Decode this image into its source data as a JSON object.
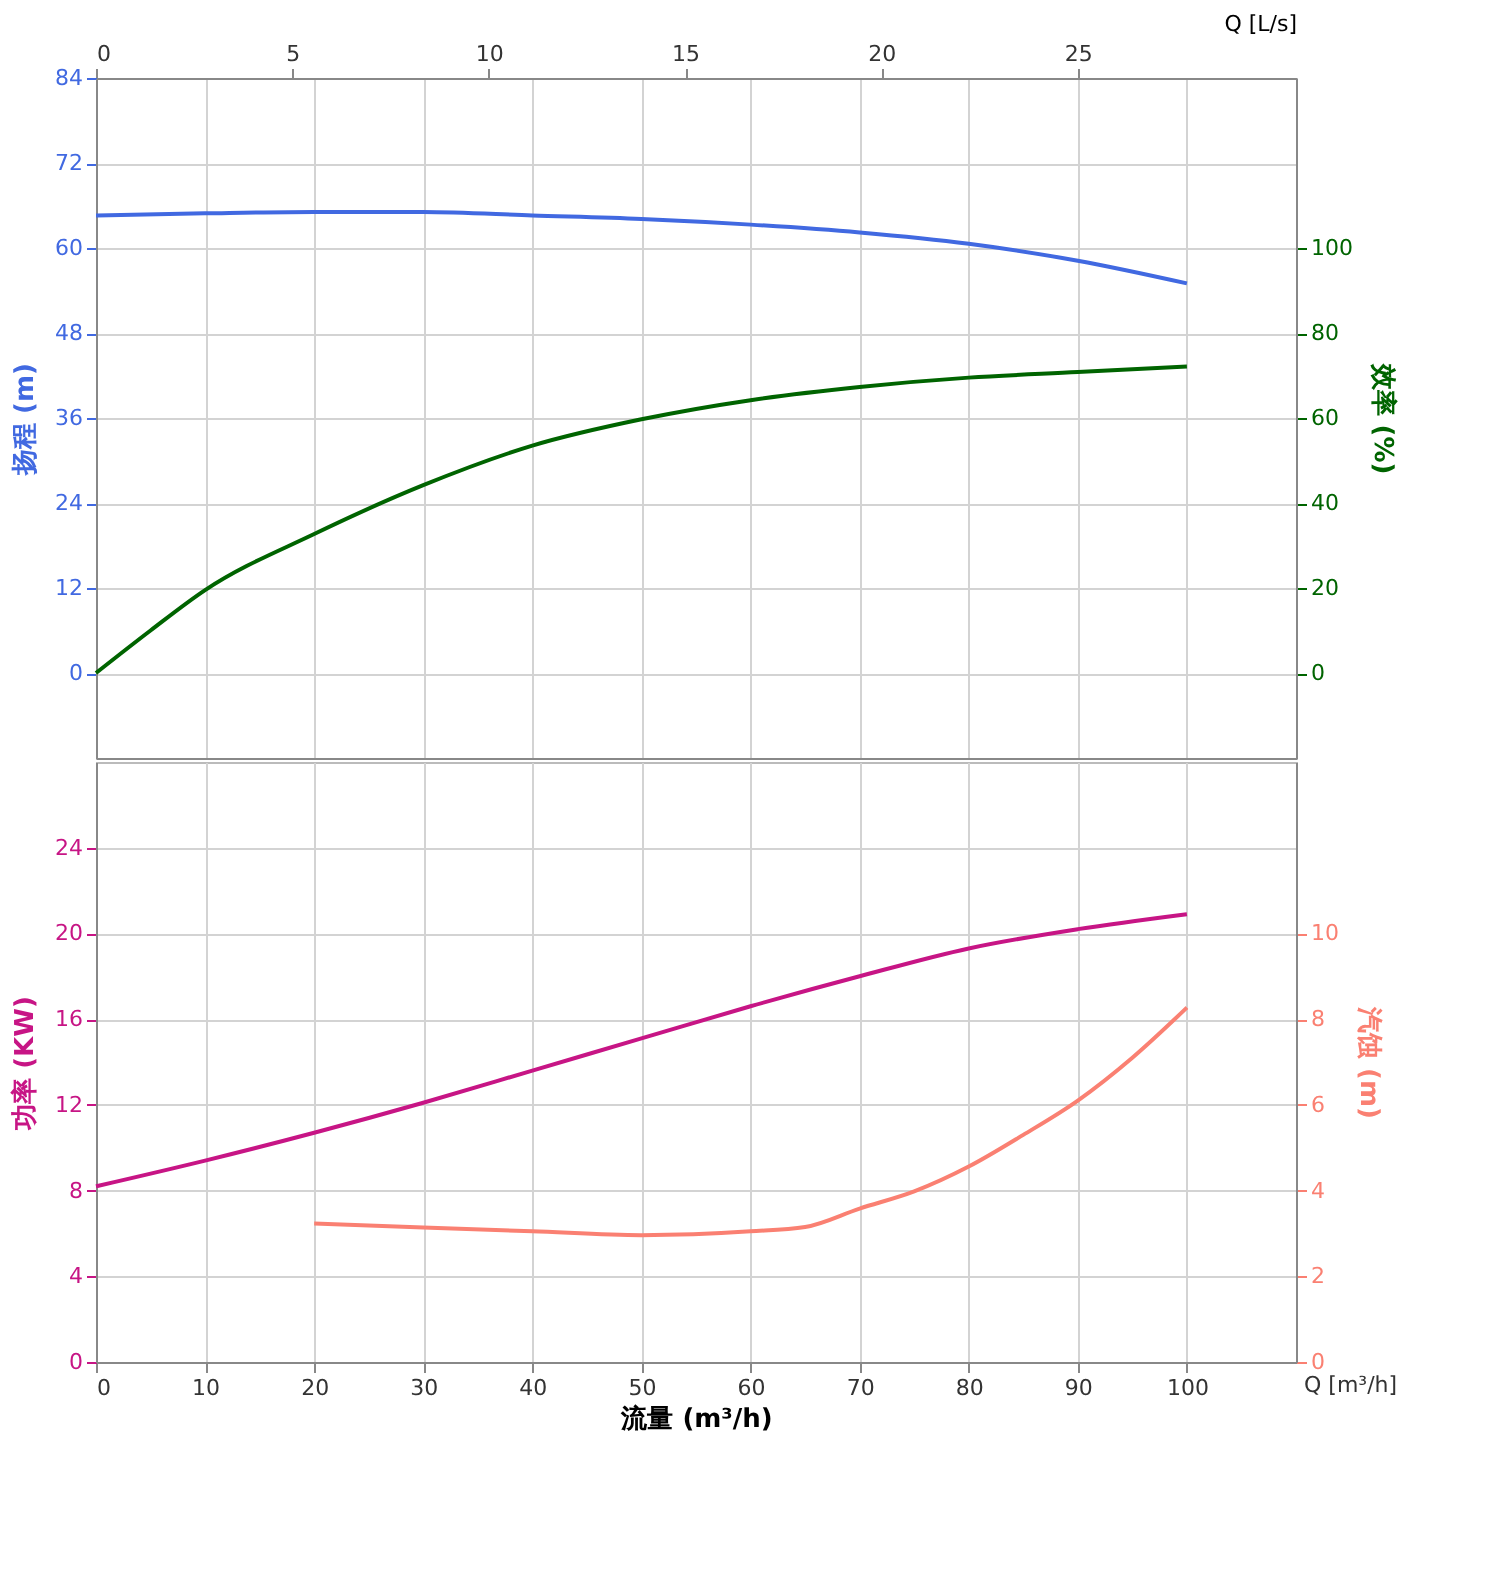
{
  "chart_data": [
    {
      "type": "line",
      "x": [
        0,
        10,
        20,
        30,
        40,
        50,
        60,
        70,
        80,
        90,
        100
      ],
      "series": [
        {
          "color": "#4169e1",
          "axis": "y",
          "values": [
            64.6,
            64.9,
            65.1,
            65.1,
            64.6,
            64.1,
            63.3,
            62.2,
            60.6,
            58.2,
            55.0
          ]
        },
        {
          "color": "#006400",
          "axis": "y2",
          "x": [
            0,
            5,
            10,
            20,
            30,
            40,
            50,
            60,
            70,
            80,
            90,
            100
          ],
          "values": [
            0,
            10,
            19.5,
            32.7,
            44.2,
            53.5,
            59.7,
            64.2,
            67.3,
            69.5,
            70.8,
            72.1
          ]
        }
      ],
      "xlim": [
        0,
        110
      ],
      "xticks": [
        0,
        10,
        20,
        30,
        40,
        50,
        60,
        70,
        80,
        90,
        100
      ],
      "x2lim": [
        0,
        30.56
      ],
      "x2ticks": [
        0,
        5,
        10,
        15,
        20,
        25
      ],
      "x2label": "Q [L/s]",
      "ylim": [
        -12,
        84
      ],
      "yticks": [
        0,
        12,
        24,
        36,
        48,
        60,
        72,
        84
      ],
      "ylabel": "扬程 (m)",
      "y2lim": [
        -20,
        140
      ],
      "y2ticks": [
        0,
        20,
        40,
        60,
        80,
        100
      ],
      "y2label": "效率 (%)",
      "grid": true,
      "tick_labels": "y"
    },
    {
      "type": "line",
      "x": [
        0,
        10,
        20,
        30,
        40,
        50,
        60,
        70,
        80,
        90,
        100
      ],
      "series": [
        {
          "color": "#c71585",
          "axis": "y",
          "values": [
            8.2,
            9.4,
            10.7,
            12.1,
            13.6,
            15.1,
            16.6,
            18.0,
            19.3,
            20.2,
            20.9
          ]
        },
        {
          "color": "#fa8072",
          "axis": "y2",
          "x": [
            20,
            30,
            40,
            50,
            60,
            65,
            70,
            75,
            80,
            85,
            90,
            95,
            100
          ],
          "values": [
            3.23,
            3.14,
            3.05,
            2.96,
            3.05,
            3.15,
            3.58,
            3.98,
            4.56,
            5.3,
            6.1,
            7.1,
            8.27
          ]
        }
      ],
      "xlim": [
        0,
        110
      ],
      "xticks": [
        0,
        10,
        20,
        30,
        40,
        50,
        60,
        70,
        80,
        90,
        100
      ],
      "xlabel": "流量 (m³/h)",
      "ylim": [
        0,
        28
      ],
      "yticks": [
        0,
        4,
        8,
        12,
        16,
        20,
        24
      ],
      "ylabel": "功率 (KW)",
      "y2lim": [
        0,
        14
      ],
      "y2ticks": [
        0,
        2,
        4,
        6,
        8,
        10
      ],
      "y2label": "汽蚀 (m)",
      "annotations": [
        "Q [m³/h]"
      ],
      "grid": true
    }
  ]
}
